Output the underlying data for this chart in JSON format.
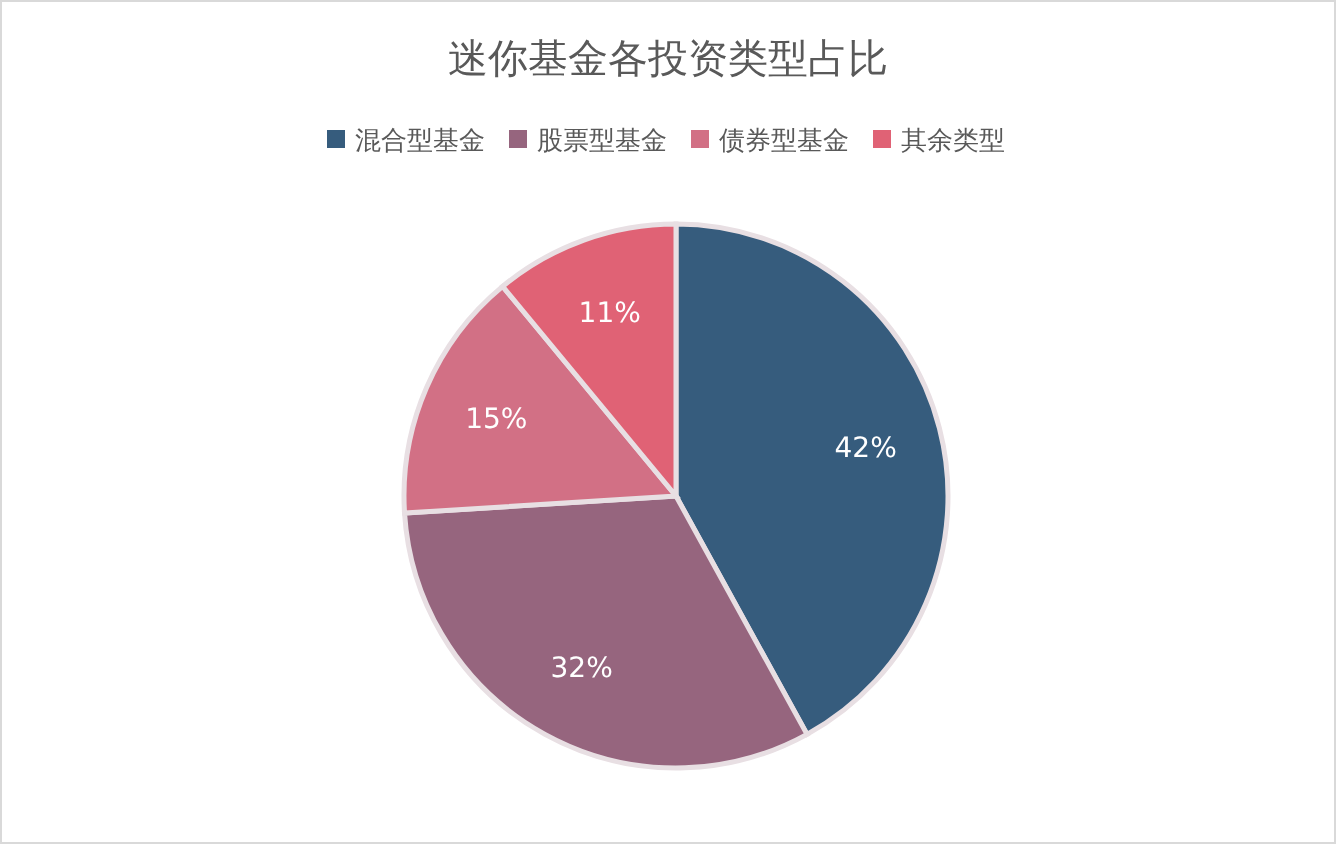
{
  "chart_data": {
    "type": "pie",
    "title": "迷你基金各投资类型占比",
    "categories": [
      "混合型基金",
      "股票型基金",
      "债券型基金",
      "其余类型"
    ],
    "values": [
      42,
      32,
      15,
      11
    ],
    "colors": [
      "#365c7d",
      "#96657e",
      "#d27085",
      "#e06275"
    ],
    "value_labels": [
      "42%",
      "32%",
      "15%",
      "11%"
    ],
    "legend": "top"
  }
}
